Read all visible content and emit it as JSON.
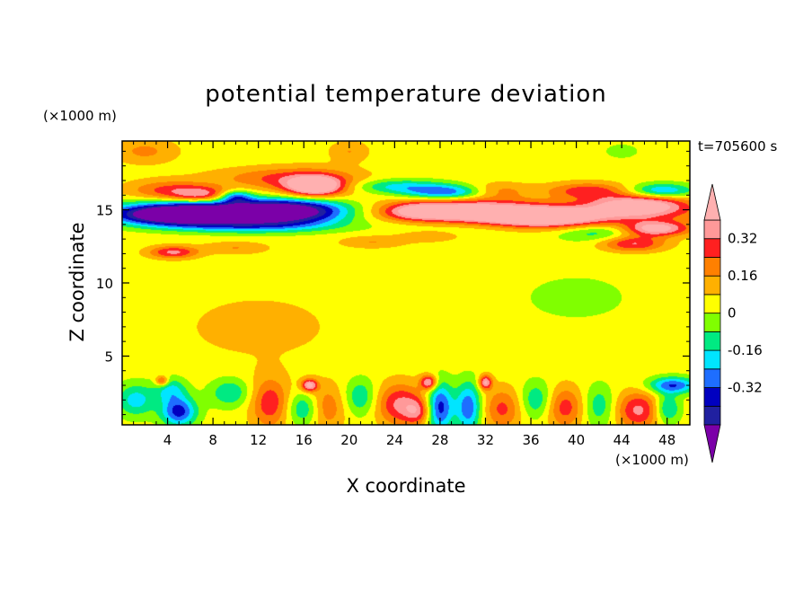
{
  "chart_data": {
    "type": "heatmap",
    "title": "potential temperature deviation",
    "xlabel": "X coordinate",
    "ylabel": "Z coordinate",
    "x_unit": "(×1000 m)",
    "y_unit": "(×1000 m)",
    "time_label": "t=705600 s",
    "xlim": [
      0,
      50
    ],
    "ylim": [
      0.3,
      19.7
    ],
    "x_ticks": [
      4,
      8,
      12,
      16,
      20,
      24,
      28,
      32,
      36,
      40,
      44,
      48
    ],
    "y_ticks": [
      5,
      10,
      15
    ],
    "colorbar": {
      "levels": [
        -0.48,
        -0.4,
        -0.32,
        -0.24,
        -0.16,
        -0.08,
        0,
        0.08,
        0.16,
        0.24,
        0.32,
        0.4
      ],
      "colors": [
        "#7b00a8",
        "#2020a0",
        "#0000c0",
        "#1e6eff",
        "#00e5ff",
        "#00ea82",
        "#80ff00",
        "#ffff00",
        "#ffb000",
        "#ff8000",
        "#ff2020",
        "#ff9999",
        "#ffb0b0"
      ],
      "tick_labels": [
        "0.32",
        "0.16",
        "0",
        "-0.16",
        "-0.32"
      ],
      "tick_values": [
        0.32,
        0.16,
        0,
        -0.16,
        -0.32
      ]
    },
    "background_level": 0.04,
    "features": [
      {
        "x": 8,
        "z": 14.9,
        "sx": 5.5,
        "sz": 0.55,
        "v": -0.55
      },
      {
        "x": 15,
        "z": 14.9,
        "sx": 3.5,
        "sz": 0.6,
        "v": -0.5
      },
      {
        "x": 4.5,
        "z": 14.6,
        "sx": 3.5,
        "sz": 0.45,
        "v": -0.5
      },
      {
        "x": 11,
        "z": 13.9,
        "sx": 5,
        "sz": 0.35,
        "v": -0.26
      },
      {
        "x": 4,
        "z": 16.3,
        "sx": 2.5,
        "sz": 0.5,
        "v": 0.22
      },
      {
        "x": 7,
        "z": 16,
        "sx": 1.8,
        "sz": 0.4,
        "v": 0.3
      },
      {
        "x": 17,
        "z": 16.6,
        "sx": 1.6,
        "sz": 0.45,
        "v": 0.45
      },
      {
        "x": 17,
        "z": 16.8,
        "sx": 3.2,
        "sz": 0.7,
        "v": 0.2
      },
      {
        "x": 13,
        "z": 17.2,
        "sx": 4,
        "sz": 0.5,
        "v": 0.14
      },
      {
        "x": 10,
        "z": 15.9,
        "sx": 1,
        "sz": 0.3,
        "v": -0.3
      },
      {
        "x": 28.5,
        "z": 16.2,
        "sx": 2.5,
        "sz": 0.35,
        "v": -0.34
      },
      {
        "x": 24,
        "z": 16.6,
        "sx": 3,
        "sz": 0.35,
        "v": -0.22
      },
      {
        "x": 33,
        "z": 16.3,
        "sx": 2,
        "sz": 0.4,
        "v": 0.16
      },
      {
        "x": 41,
        "z": 16.3,
        "sx": 2.5,
        "sz": 0.4,
        "v": 0.25
      },
      {
        "x": 47.5,
        "z": 16.3,
        "sx": 2,
        "sz": 0.35,
        "v": -0.3
      },
      {
        "x": 30,
        "z": 14.9,
        "sx": 4.5,
        "sz": 0.55,
        "v": 0.45
      },
      {
        "x": 37,
        "z": 14.4,
        "sx": 3.5,
        "sz": 0.5,
        "v": 0.45
      },
      {
        "x": 45.5,
        "z": 15.3,
        "sx": 3,
        "sz": 0.5,
        "v": 0.45
      },
      {
        "x": 40,
        "z": 14.6,
        "sx": 8,
        "sz": 0.6,
        "v": 0.2
      },
      {
        "x": 26,
        "z": 14.9,
        "sx": 2,
        "sz": 0.4,
        "v": 0.22
      },
      {
        "x": 47,
        "z": 13.7,
        "sx": 2,
        "sz": 0.35,
        "v": 0.42
      },
      {
        "x": 45,
        "z": 12.7,
        "sx": 2,
        "sz": 0.4,
        "v": 0.3
      },
      {
        "x": 42,
        "z": 13.4,
        "sx": 2.5,
        "sz": 0.4,
        "v": -0.17
      },
      {
        "x": 34,
        "z": 13.9,
        "sx": 7,
        "sz": 0.4,
        "v": -0.1
      },
      {
        "x": 4.5,
        "z": 12.1,
        "sx": 1.5,
        "sz": 0.3,
        "v": 0.3
      },
      {
        "x": 10,
        "z": 12.4,
        "sx": 2,
        "sz": 0.3,
        "v": 0.12
      },
      {
        "x": 22,
        "z": 12.8,
        "sx": 2,
        "sz": 0.3,
        "v": 0.12
      },
      {
        "x": 27,
        "z": 13.2,
        "sx": 2,
        "sz": 0.3,
        "v": 0.1
      },
      {
        "x": 1.2,
        "z": 2,
        "sx": 1.2,
        "sz": 0.8,
        "v": -0.24
      },
      {
        "x": 5,
        "z": 1.2,
        "sx": 1.1,
        "sz": 0.7,
        "v": -0.4
      },
      {
        "x": 4.3,
        "z": 2.7,
        "sx": 1,
        "sz": 0.6,
        "v": -0.22
      },
      {
        "x": 9.5,
        "z": 2.5,
        "sx": 1.3,
        "sz": 0.7,
        "v": -0.2
      },
      {
        "x": 13,
        "z": 1.8,
        "sx": 1.2,
        "sz": 1.2,
        "v": 0.26
      },
      {
        "x": 16,
        "z": 1.4,
        "sx": 1,
        "sz": 0.8,
        "v": -0.22
      },
      {
        "x": 18,
        "z": 1.5,
        "sx": 1.2,
        "sz": 1.1,
        "v": 0.18
      },
      {
        "x": 21,
        "z": 2.2,
        "sx": 1,
        "sz": 0.9,
        "v": -0.2
      },
      {
        "x": 24.5,
        "z": 1.7,
        "sx": 1.5,
        "sz": 1,
        "v": 0.3
      },
      {
        "x": 26,
        "z": 1.2,
        "sx": 0.8,
        "sz": 0.6,
        "v": 0.2
      },
      {
        "x": 28,
        "z": 1.5,
        "sx": 0.8,
        "sz": 1.2,
        "v": -0.4
      },
      {
        "x": 30.5,
        "z": 1.5,
        "sx": 0.8,
        "sz": 1.2,
        "v": -0.35
      },
      {
        "x": 33.5,
        "z": 1.4,
        "sx": 1.2,
        "sz": 1,
        "v": 0.22
      },
      {
        "x": 36.5,
        "z": 2,
        "sx": 1,
        "sz": 0.9,
        "v": -0.2
      },
      {
        "x": 39,
        "z": 1.5,
        "sx": 1.2,
        "sz": 1,
        "v": 0.24
      },
      {
        "x": 42,
        "z": 1.6,
        "sx": 1,
        "sz": 1,
        "v": -0.18
      },
      {
        "x": 45.5,
        "z": 1.3,
        "sx": 1.4,
        "sz": 0.9,
        "v": 0.3
      },
      {
        "x": 48.5,
        "z": 3,
        "sx": 1.5,
        "sz": 0.4,
        "v": -0.36
      },
      {
        "x": 48,
        "z": 1.4,
        "sx": 0.8,
        "sz": 0.7,
        "v": -0.25
      },
      {
        "x": 16.5,
        "z": 3,
        "sx": 0.5,
        "sz": 0.3,
        "v": 0.4
      },
      {
        "x": 27,
        "z": 3.2,
        "sx": 0.5,
        "sz": 0.35,
        "v": 0.4
      },
      {
        "x": 32,
        "z": 3.2,
        "sx": 0.4,
        "sz": 0.35,
        "v": 0.38
      },
      {
        "x": 3.5,
        "z": 3.3,
        "sx": 0.4,
        "sz": 0.25,
        "v": 0.28
      },
      {
        "x": 12,
        "z": 7,
        "sx": 6,
        "sz": 2,
        "v": 0.06
      },
      {
        "x": 40,
        "z": 9,
        "sx": 6,
        "sz": 2,
        "v": -0.05
      },
      {
        "x": 2,
        "z": 19,
        "sx": 2,
        "sz": 0.6,
        "v": 0.14
      },
      {
        "x": 20,
        "z": 19,
        "sx": 1.2,
        "sz": 0.5,
        "v": 0.12
      },
      {
        "x": 44,
        "z": 19,
        "sx": 1.5,
        "sz": 0.5,
        "v": -0.06
      }
    ]
  }
}
